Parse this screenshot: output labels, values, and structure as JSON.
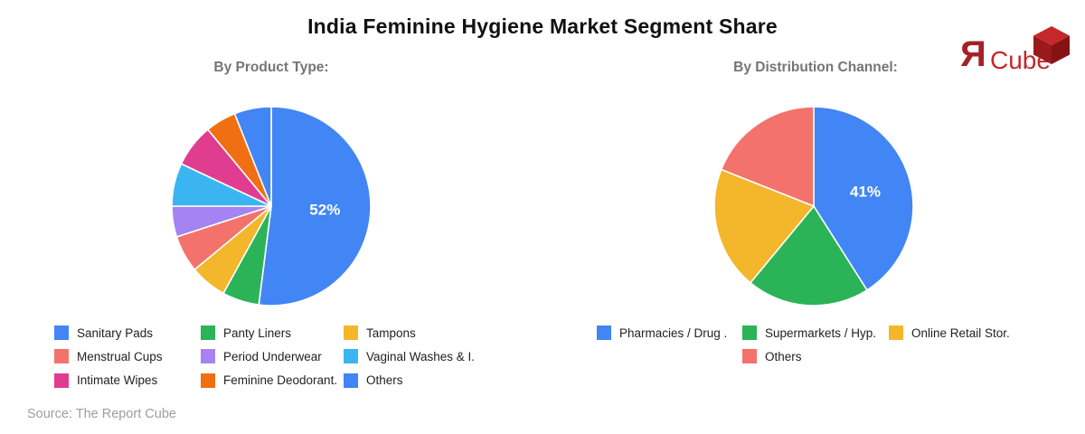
{
  "page": {
    "title": "India Feminine Hygiene Market Segment Share",
    "source": "Source: The Report Cube"
  },
  "logo": {
    "glyph": "Я",
    "name": "Cube",
    "glyph_color": "#A42125",
    "name_color": "#C5282B",
    "cube_top_color": "#C5282B",
    "cube_left_color": "#9A191B",
    "cube_right_color": "#871214"
  },
  "chart_data": [
    {
      "type": "pie",
      "title": "By Product Type:",
      "labels": [
        "Sanitary Pads",
        "Panty Liners",
        "Tampons",
        "Menstrual Cups",
        "Period Underwear",
        "Vaginal Washes & I.",
        "Intimate Wipes",
        "Feminine Deodorant.",
        "Others"
      ],
      "values": [
        52,
        6,
        6,
        6,
        5,
        7,
        7,
        5,
        6
      ],
      "colors": [
        "#4285F4",
        "#2BB457",
        "#F4B62B",
        "#F3736C",
        "#A583F2",
        "#3BB5F1",
        "#E03D90",
        "#F06F12",
        "#4285F4"
      ],
      "labeled_slice": {
        "index": 0,
        "text": "52%"
      },
      "legend_rows": [
        [
          0,
          1,
          2
        ],
        [
          3,
          4,
          5
        ],
        [
          6,
          7,
          8
        ]
      ],
      "legend_position": "bottom",
      "start_angle_deg": 0,
      "direction": "clockwise"
    },
    {
      "type": "pie",
      "title": "By Distribution Channel:",
      "labels": [
        "Pharmacies / Drug .",
        "Supermarkets / Hyp.",
        "Online Retail Stor.",
        "Others"
      ],
      "values": [
        41,
        20,
        20,
        19
      ],
      "colors": [
        "#4285F4",
        "#2BB457",
        "#F4B62B",
        "#F3736C"
      ],
      "labeled_slice": {
        "index": 0,
        "text": "41%"
      },
      "legend_rows": [
        [
          0,
          1,
          2
        ],
        [
          null,
          3,
          null
        ]
      ],
      "legend_position": "bottom",
      "start_angle_deg": 0,
      "direction": "clockwise"
    }
  ]
}
